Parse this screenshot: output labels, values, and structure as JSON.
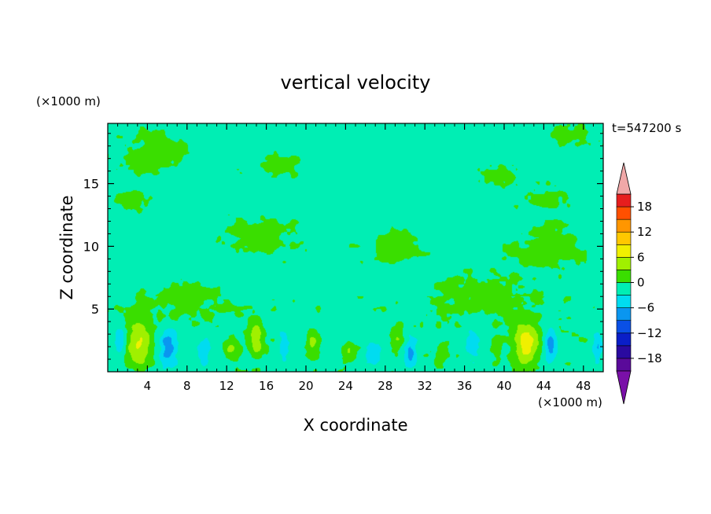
{
  "chart_data": {
    "type": "heatmap",
    "title": "vertical velocity",
    "xlabel": "X coordinate",
    "ylabel": "Z coordinate",
    "x_unit_label": "(×1000 m)",
    "y_unit_label": "(×1000 m)",
    "time_label": "t=547200 s",
    "xlim": [
      0,
      50
    ],
    "ylim": [
      0,
      19.8
    ],
    "x_ticks": [
      4,
      8,
      12,
      16,
      20,
      24,
      28,
      32,
      36,
      40,
      44,
      48
    ],
    "y_ticks": [
      5,
      10,
      15
    ],
    "colorbar": {
      "levels": [
        -21,
        -18,
        -15,
        -12,
        -9,
        -6,
        -3,
        0,
        3,
        6,
        9,
        12,
        15,
        18,
        21
      ],
      "tick_values": [
        18,
        12,
        6,
        0,
        -6,
        -12,
        -18
      ],
      "tick_labels": [
        "18",
        "12",
        "6",
        "0",
        "−6",
        "−12",
        "−18"
      ],
      "colors": [
        "#5a0a9a",
        "#2a0aa0",
        "#0a1ec8",
        "#0a50e6",
        "#0a96f0",
        "#00dcf0",
        "#00eeb4",
        "#3ade00",
        "#a0f000",
        "#f0f000",
        "#ffc800",
        "#ff9600",
        "#ff5000",
        "#e61e1e"
      ],
      "under_color": "#7a10a8",
      "over_color": "#f0a8a8"
    },
    "background_value": -1,
    "features": [
      {
        "kind": "updraft",
        "x": 3.2,
        "z": 2.4,
        "peak": 8,
        "sx": 1.3,
        "sz": 1.9
      },
      {
        "kind": "updraft",
        "x": 42.2,
        "z": 2.3,
        "peak": 8,
        "sx": 1.3,
        "sz": 1.9
      },
      {
        "kind": "updraft",
        "x": 15.0,
        "z": 2.6,
        "peak": 6,
        "sx": 0.7,
        "sz": 1.4
      },
      {
        "kind": "updraft",
        "x": 20.6,
        "z": 2.2,
        "peak": 5,
        "sx": 0.6,
        "sz": 1.2
      },
      {
        "kind": "updraft",
        "x": 12.4,
        "z": 1.8,
        "peak": 4,
        "sx": 0.8,
        "sz": 1.0
      },
      {
        "kind": "updraft",
        "x": 24.3,
        "z": 1.5,
        "peak": 3.5,
        "sx": 0.8,
        "sz": 0.9
      },
      {
        "kind": "updraft",
        "x": 29.3,
        "z": 3.0,
        "peak": 3.5,
        "sx": 0.6,
        "sz": 1.2
      },
      {
        "kind": "updraft",
        "x": 39.3,
        "z": 2.0,
        "peak": 3,
        "sx": 0.5,
        "sz": 1.1
      },
      {
        "kind": "updraft",
        "x": 33.7,
        "z": 1.4,
        "peak": 3,
        "sx": 0.6,
        "sz": 0.8
      },
      {
        "kind": "downdraft",
        "x": 6.1,
        "z": 2.0,
        "peak": -7,
        "sx": 0.9,
        "sz": 1.5
      },
      {
        "kind": "downdraft",
        "x": 30.6,
        "z": 1.5,
        "peak": -6,
        "sx": 0.6,
        "sz": 1.2
      },
      {
        "kind": "downdraft",
        "x": 44.7,
        "z": 2.2,
        "peak": -6,
        "sx": 0.6,
        "sz": 1.3
      },
      {
        "kind": "downdraft",
        "x": 49.5,
        "z": 2.0,
        "peak": -5,
        "sx": 0.5,
        "sz": 1.2
      },
      {
        "kind": "downdraft",
        "x": 17.8,
        "z": 2.0,
        "peak": -4,
        "sx": 0.6,
        "sz": 1.3
      },
      {
        "kind": "downdraft",
        "x": 1.3,
        "z": 2.4,
        "peak": -4,
        "sx": 0.6,
        "sz": 1.4
      },
      {
        "kind": "downdraft",
        "x": 36.8,
        "z": 2.0,
        "peak": -4,
        "sx": 0.8,
        "sz": 1.3
      },
      {
        "kind": "downdraft",
        "x": 9.5,
        "z": 1.6,
        "peak": -3.5,
        "sx": 0.8,
        "sz": 1.1
      },
      {
        "kind": "downdraft",
        "x": 26.7,
        "z": 1.4,
        "peak": -3.5,
        "sx": 0.8,
        "sz": 1.0
      },
      {
        "kind": "broad-up",
        "x": 8.0,
        "z": 5.8,
        "peak": 2.2,
        "sx": 4.5,
        "sz": 1.6
      },
      {
        "kind": "broad-up",
        "x": 38.0,
        "z": 6.0,
        "peak": 2.2,
        "sx": 5.0,
        "sz": 1.8
      },
      {
        "kind": "broad-up",
        "x": 15.5,
        "z": 10.8,
        "peak": 2.0,
        "sx": 4.0,
        "sz": 1.5
      },
      {
        "kind": "broad-up",
        "x": 44.5,
        "z": 10.0,
        "peak": 2.0,
        "sx": 4.0,
        "sz": 2.0
      },
      {
        "kind": "broad-up",
        "x": 29.0,
        "z": 10.0,
        "peak": 1.8,
        "sx": 3.5,
        "sz": 1.4
      },
      {
        "kind": "broad-up",
        "x": 5.0,
        "z": 17.5,
        "peak": 2.0,
        "sx": 4.0,
        "sz": 1.8
      },
      {
        "kind": "broad-up",
        "x": 17.0,
        "z": 16.5,
        "peak": 1.6,
        "sx": 3.0,
        "sz": 1.2
      },
      {
        "kind": "broad-up",
        "x": 38.5,
        "z": 15.8,
        "peak": 1.6,
        "sx": 2.5,
        "sz": 1.2
      },
      {
        "kind": "broad-up",
        "x": 46.5,
        "z": 19.0,
        "peak": 1.6,
        "sx": 3.0,
        "sz": 1.0
      },
      {
        "kind": "broad-up",
        "x": 44.5,
        "z": 13.8,
        "peak": 1.6,
        "sx": 3.0,
        "sz": 1.0
      },
      {
        "kind": "broad-up",
        "x": 2.5,
        "z": 13.5,
        "peak": 1.6,
        "sx": 2.5,
        "sz": 1.0
      }
    ]
  }
}
